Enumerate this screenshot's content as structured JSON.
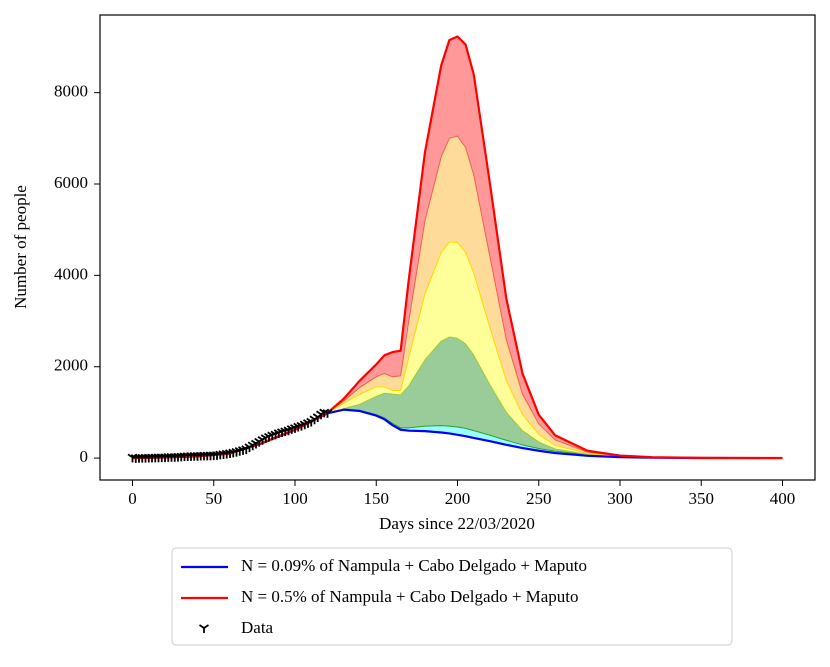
{
  "chart_data": {
    "type": "line",
    "xlabel": "Days since 22/03/2020",
    "ylabel": "Number of people",
    "xlim": [
      -20,
      420
    ],
    "ylim": [
      -480,
      9700
    ],
    "xticks": [
      0,
      50,
      100,
      150,
      200,
      250,
      300,
      350,
      400
    ],
    "yticks": [
      0,
      2000,
      4000,
      6000,
      8000
    ],
    "x": [
      0,
      20,
      40,
      60,
      80,
      100,
      110,
      120,
      130,
      140,
      150,
      155,
      160,
      165,
      170,
      180,
      190,
      195,
      200,
      205,
      210,
      220,
      230,
      240,
      250,
      260,
      280,
      300,
      320,
      350,
      400
    ],
    "series": [
      {
        "name": "N = 0.09% of Nampula + Cabo Delgado + Maputo",
        "color": "#0000ff",
        "width": 2.2,
        "values": [
          0,
          15,
          40,
          100,
          330,
          620,
          800,
          980,
          1060,
          1030,
          930,
          850,
          720,
          620,
          600,
          590,
          560,
          540,
          510,
          480,
          440,
          370,
          290,
          220,
          160,
          110,
          50,
          20,
          8,
          2,
          0
        ]
      },
      {
        "color": "#2ca02c",
        "fill": "#00ffff",
        "width": 1,
        "values": [
          0,
          15,
          40,
          100,
          330,
          620,
          800,
          980,
          1060,
          1040,
          950,
          880,
          760,
          660,
          660,
          700,
          710,
          700,
          680,
          650,
          600,
          500,
          390,
          290,
          210,
          150,
          70,
          30,
          12,
          3,
          0
        ]
      },
      {
        "color": "#9acd32",
        "fill": "#008000",
        "width": 1,
        "values": [
          0,
          15,
          40,
          100,
          330,
          620,
          800,
          980,
          1080,
          1180,
          1350,
          1420,
          1400,
          1380,
          1580,
          2150,
          2560,
          2650,
          2620,
          2500,
          2250,
          1600,
          1000,
          600,
          350,
          200,
          80,
          30,
          12,
          3,
          0
        ]
      },
      {
        "color": "#ffd700",
        "fill": "#ffff00",
        "width": 1,
        "values": [
          0,
          15,
          40,
          100,
          330,
          620,
          800,
          990,
          1200,
          1400,
          1560,
          1560,
          1480,
          1480,
          2200,
          3600,
          4500,
          4730,
          4720,
          4500,
          4050,
          2850,
          1700,
          950,
          520,
          280,
          100,
          35,
          12,
          3,
          0
        ]
      },
      {
        "color": "#f0604a",
        "fill": "#ffa500",
        "width": 1,
        "values": [
          0,
          15,
          40,
          100,
          330,
          620,
          800,
          990,
          1250,
          1550,
          1780,
          1850,
          1780,
          1800,
          3000,
          5200,
          6600,
          7000,
          7050,
          6800,
          6200,
          4400,
          2600,
          1400,
          750,
          400,
          130,
          45,
          15,
          4,
          0
        ]
      },
      {
        "name": "N = 0.5% of Nampula + Cabo Delgado + Maputo",
        "color": "#ff0000",
        "fill": "#ff0000",
        "width": 2.2,
        "values": [
          0,
          15,
          40,
          100,
          330,
          620,
          800,
          990,
          1300,
          1700,
          2050,
          2250,
          2320,
          2350,
          3900,
          6700,
          8600,
          9150,
          9230,
          9050,
          8400,
          6000,
          3500,
          1850,
          950,
          500,
          160,
          55,
          18,
          5,
          1
        ]
      }
    ],
    "scatter": {
      "name": "Data",
      "color": "#000000",
      "x": [
        0,
        2,
        4,
        6,
        8,
        10,
        12,
        14,
        16,
        18,
        20,
        22,
        24,
        26,
        28,
        30,
        32,
        34,
        36,
        38,
        40,
        42,
        44,
        46,
        48,
        50,
        52,
        54,
        56,
        58,
        60,
        62,
        64,
        66,
        68,
        70,
        72,
        74,
        76,
        78,
        80,
        82,
        84,
        86,
        88,
        90,
        92,
        94,
        96,
        98,
        100,
        102,
        104,
        106,
        108,
        110,
        112,
        114,
        116,
        118,
        120
      ],
      "values": [
        15,
        5,
        8,
        10,
        10,
        12,
        14,
        15,
        18,
        20,
        22,
        25,
        28,
        30,
        33,
        38,
        42,
        45,
        48,
        50,
        52,
        55,
        58,
        60,
        62,
        65,
        70,
        80,
        90,
        100,
        110,
        125,
        140,
        160,
        180,
        200,
        240,
        280,
        320,
        360,
        400,
        440,
        470,
        500,
        520,
        550,
        570,
        590,
        610,
        640,
        660,
        690,
        710,
        740,
        770,
        800,
        850,
        900,
        960,
        1000,
        990
      ]
    }
  }
}
